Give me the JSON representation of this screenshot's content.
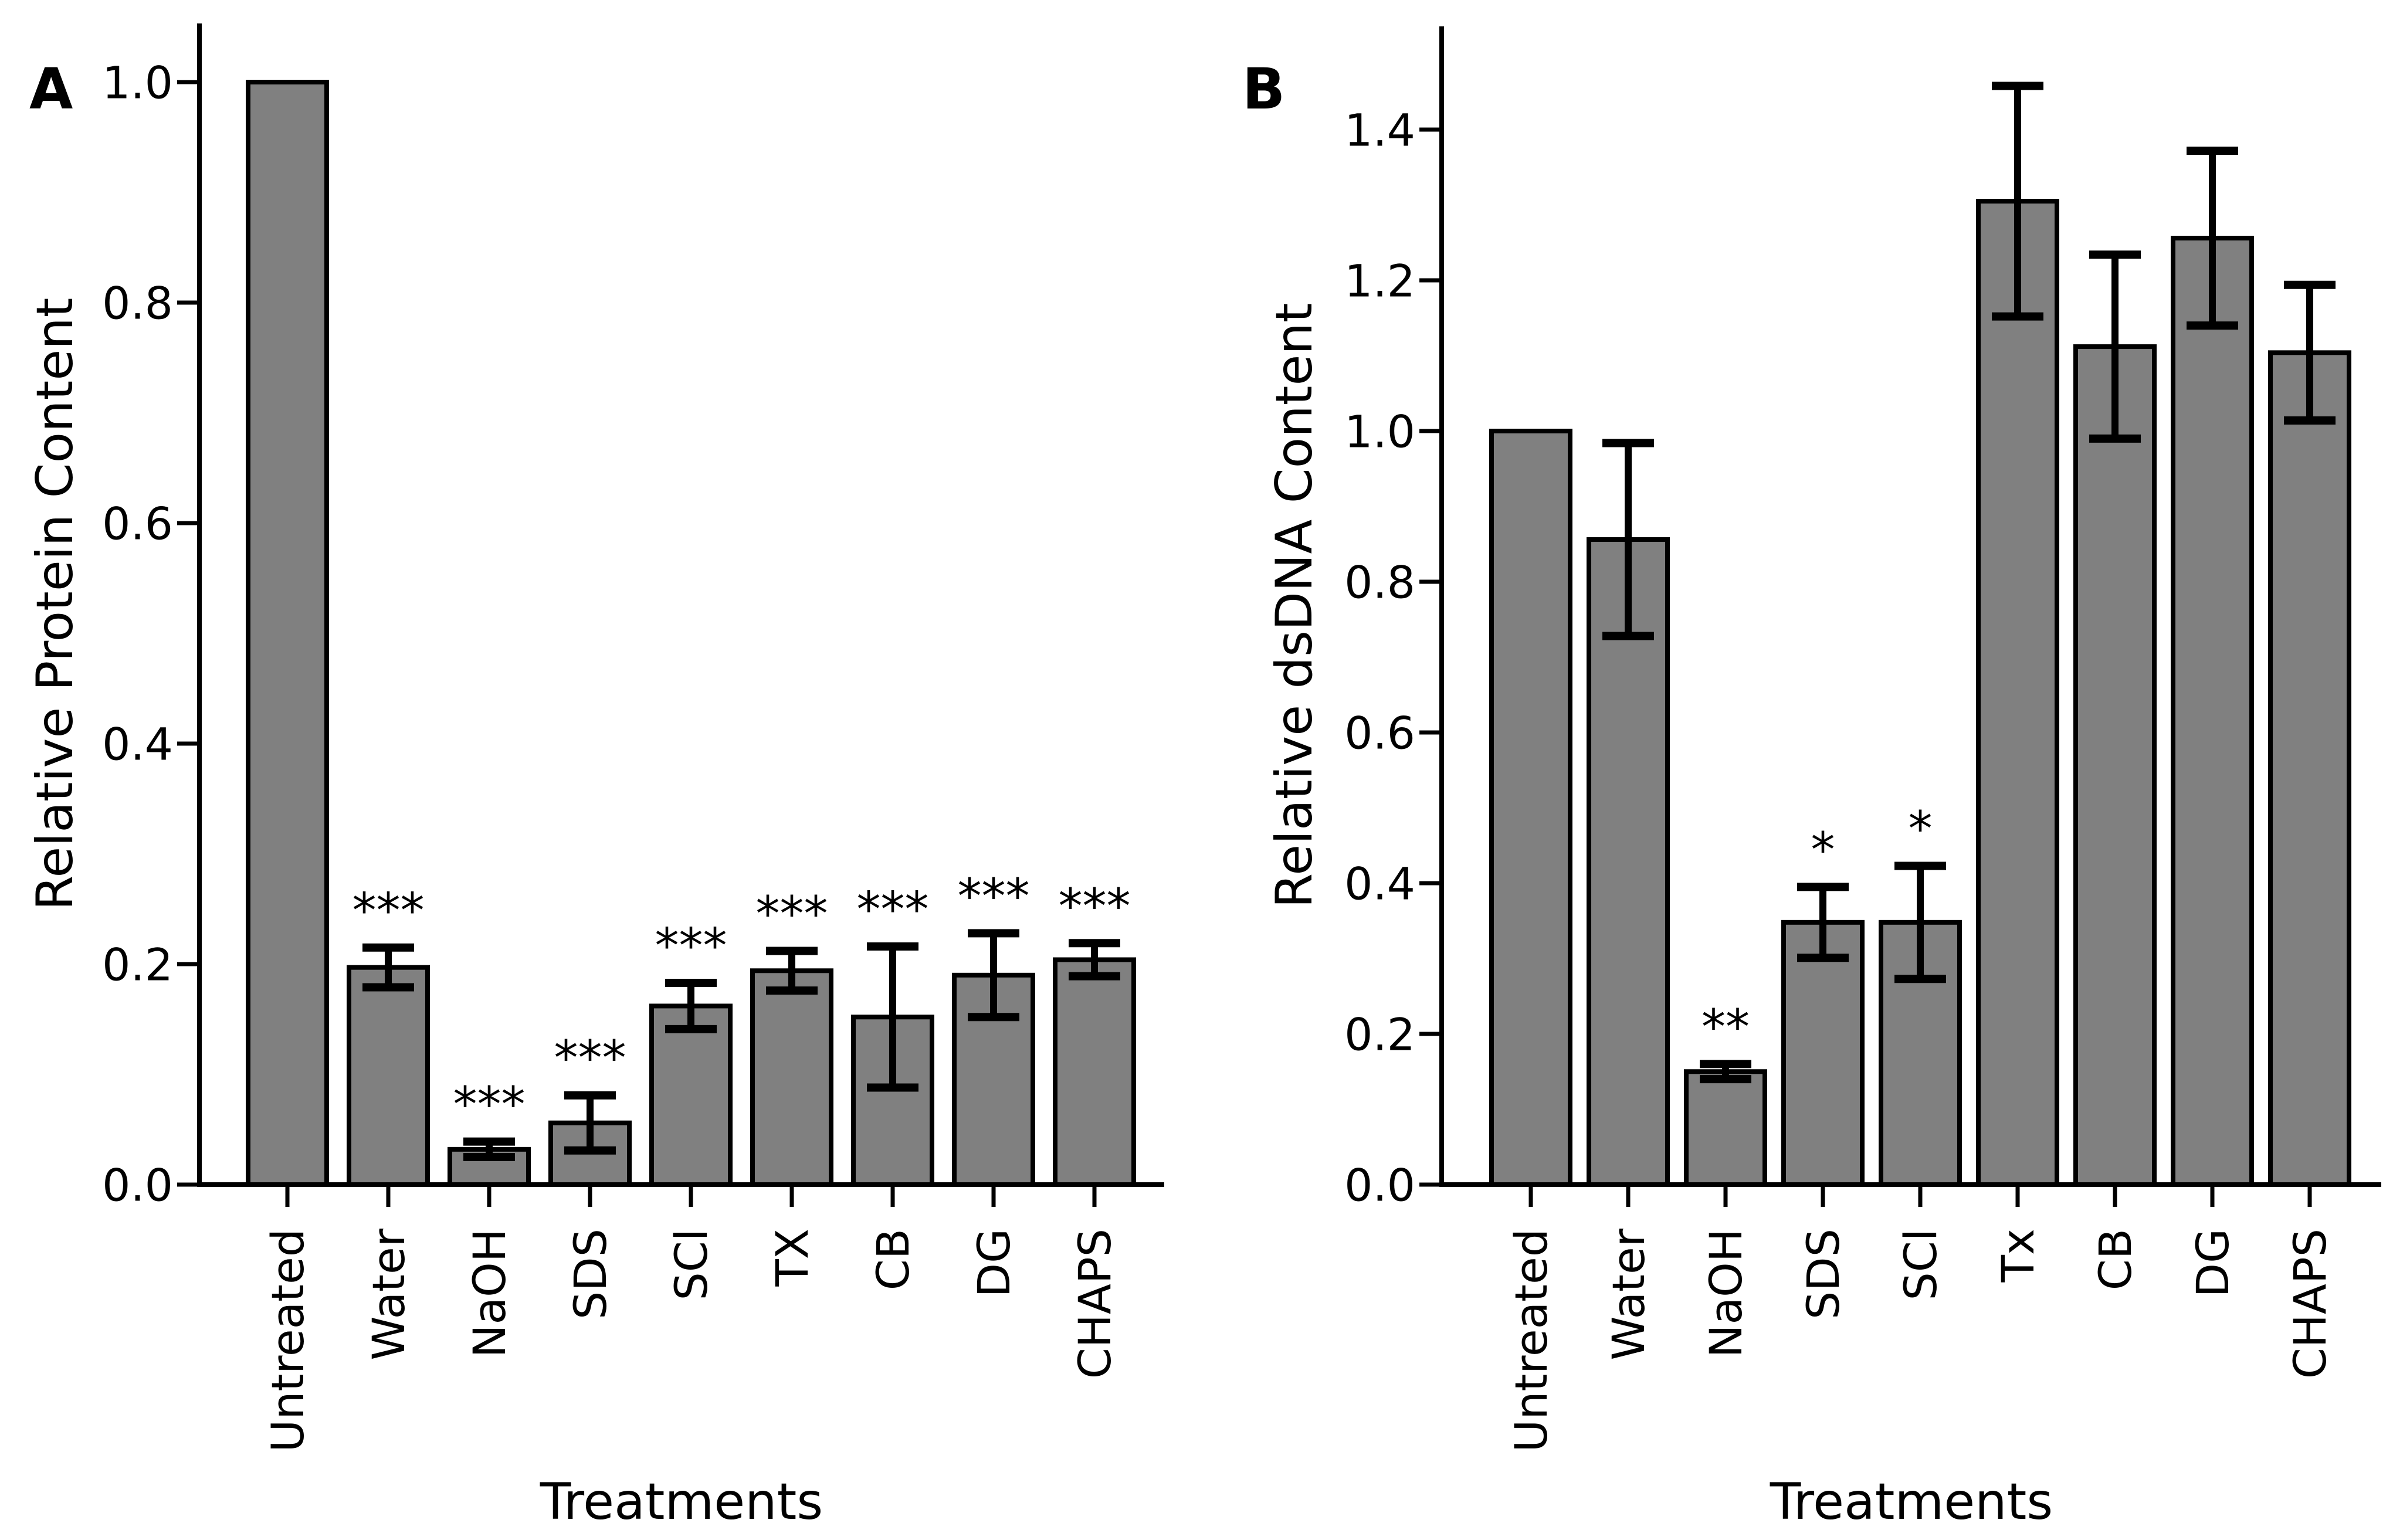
{
  "figure": {
    "background_color": "#ffffff",
    "bar_fill_color": "#808080",
    "bar_edge_color": "#000000",
    "error_bar_color": "#000000",
    "text_color": "#000000"
  },
  "chart_data": [
    {
      "type": "bar",
      "panel_label": "A",
      "title": "",
      "xlabel": "Treatments",
      "ylabel": "Relative Protein Content",
      "categories": [
        "Untreated",
        "Water",
        "NaOH",
        "SDS",
        "SCl",
        "TX",
        "CB",
        "DG",
        "CHAPS"
      ],
      "values": [
        1.0,
        0.197,
        0.032,
        0.056,
        0.162,
        0.194,
        0.152,
        0.19,
        0.204
      ],
      "errors": [
        0,
        0.018,
        0.007,
        0.025,
        0.021,
        0.018,
        0.064,
        0.038,
        0.015
      ],
      "significance": [
        "",
        "***",
        "***",
        "***",
        "***",
        "***",
        "***",
        "***",
        "***"
      ],
      "ytick_labels": [
        "0.0",
        "0.2",
        "0.4",
        "0.6",
        "0.8",
        "1.0"
      ],
      "ylim": [
        0,
        1.05
      ],
      "grid": false,
      "legend": null
    },
    {
      "type": "bar",
      "panel_label": "B",
      "title": "",
      "xlabel": "Treatments",
      "ylabel": "Relative dsDNA Content",
      "categories": [
        "Untreated",
        "Water",
        "NaOH",
        "SDS",
        "SCl",
        "Tx",
        "CB",
        "DG",
        "CHAPS"
      ],
      "values": [
        1.0,
        0.856,
        0.15,
        0.348,
        0.348,
        1.305,
        1.112,
        1.256,
        1.104
      ],
      "errors": [
        0,
        0.128,
        0.01,
        0.047,
        0.075,
        0.153,
        0.122,
        0.116,
        0.09
      ],
      "significance": [
        "",
        "",
        "**",
        "*",
        "*",
        "",
        "",
        "",
        ""
      ],
      "ytick_labels": [
        "0.0",
        "0.2",
        "0.4",
        "0.6",
        "0.8",
        "1.0",
        "1.2",
        "1.4"
      ],
      "ylim": [
        0,
        1.53
      ],
      "grid": false,
      "legend": null
    }
  ]
}
